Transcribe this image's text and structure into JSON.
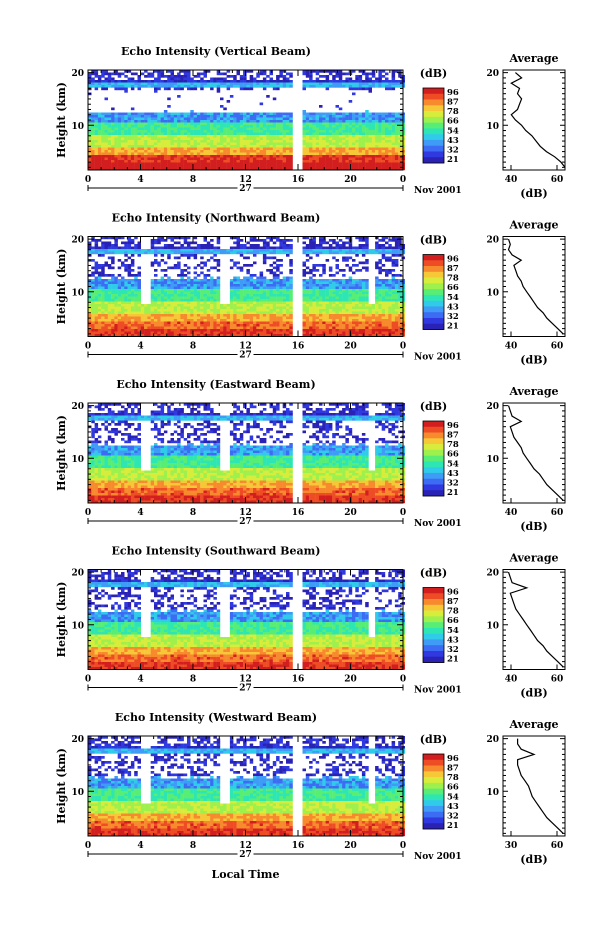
{
  "panels": [
    {
      "title": "Echo Intensity (Vertical Beam)",
      "avg_xticks": [
        "40",
        "60"
      ],
      "avg_xlim": [
        36,
        66
      ],
      "avg_profile": [
        [
          2,
          66
        ],
        [
          3,
          64
        ],
        [
          4,
          61
        ],
        [
          5,
          57
        ],
        [
          6,
          54
        ],
        [
          7,
          52
        ],
        [
          8,
          50
        ],
        [
          9,
          47
        ],
        [
          10,
          45
        ],
        [
          11,
          42
        ],
        [
          12,
          40
        ],
        [
          13,
          43
        ],
        [
          14,
          44
        ],
        [
          15,
          45
        ],
        [
          16,
          43
        ],
        [
          17,
          44
        ],
        [
          18,
          40
        ],
        [
          19,
          45
        ],
        [
          20,
          42
        ]
      ]
    },
    {
      "title": "Echo Intensity (Northward Beam)",
      "avg_xticks": [
        "40",
        "60"
      ],
      "avg_xlim": [
        30,
        64
      ],
      "avg_profile": [
        [
          2,
          63
        ],
        [
          3,
          60
        ],
        [
          4,
          57
        ],
        [
          5,
          54
        ],
        [
          6,
          52
        ],
        [
          7,
          49
        ],
        [
          8,
          47
        ],
        [
          9,
          45
        ],
        [
          10,
          43
        ],
        [
          11,
          41
        ],
        [
          12,
          40
        ],
        [
          13,
          38
        ],
        [
          14,
          37
        ],
        [
          15,
          36
        ],
        [
          16,
          40
        ],
        [
          17,
          35
        ],
        [
          18,
          33
        ],
        [
          19,
          34
        ],
        [
          20,
          33
        ]
      ]
    },
    {
      "title": "Echo Intensity (Eastward Beam)",
      "avg_xticks": [
        "40",
        "60"
      ],
      "avg_xlim": [
        30,
        64
      ],
      "avg_profile": [
        [
          2,
          63
        ],
        [
          3,
          60
        ],
        [
          4,
          57
        ],
        [
          5,
          54
        ],
        [
          6,
          52
        ],
        [
          7,
          50
        ],
        [
          8,
          47
        ],
        [
          9,
          45
        ],
        [
          10,
          43
        ],
        [
          11,
          41
        ],
        [
          12,
          40
        ],
        [
          13,
          38
        ],
        [
          14,
          36
        ],
        [
          15,
          35
        ],
        [
          16,
          34
        ],
        [
          17,
          40
        ],
        [
          18,
          35
        ],
        [
          19,
          34
        ],
        [
          20,
          33
        ]
      ]
    },
    {
      "title": "Echo Intensity (Southward Beam)",
      "avg_xticks": [
        "40",
        "60"
      ],
      "avg_xlim": [
        30,
        64
      ],
      "avg_profile": [
        [
          2,
          63
        ],
        [
          3,
          60
        ],
        [
          4,
          57
        ],
        [
          5,
          54
        ],
        [
          6,
          52
        ],
        [
          7,
          49
        ],
        [
          8,
          47
        ],
        [
          9,
          45
        ],
        [
          10,
          43
        ],
        [
          11,
          41
        ],
        [
          12,
          39
        ],
        [
          13,
          37
        ],
        [
          14,
          36
        ],
        [
          15,
          35
        ],
        [
          16,
          34
        ],
        [
          17,
          43
        ],
        [
          18,
          35
        ],
        [
          19,
          34
        ],
        [
          20,
          33
        ]
      ]
    },
    {
      "title": "Echo Intensity (Westward Beam)",
      "avg_xticks": [
        "30",
        "60"
      ],
      "avg_xlim": [
        30,
        64
      ],
      "avg_profile": [
        [
          2,
          63
        ],
        [
          3,
          60
        ],
        [
          4,
          57
        ],
        [
          5,
          54
        ],
        [
          6,
          52
        ],
        [
          7,
          50
        ],
        [
          8,
          48
        ],
        [
          9,
          46
        ],
        [
          10,
          45
        ],
        [
          11,
          44
        ],
        [
          12,
          42
        ],
        [
          13,
          40
        ],
        [
          14,
          39
        ],
        [
          15,
          38
        ],
        [
          16,
          38
        ],
        [
          17,
          47
        ],
        [
          18,
          40
        ],
        [
          19,
          38
        ],
        [
          20,
          38
        ]
      ]
    }
  ],
  "chart_data": {
    "type": "heatmap",
    "ylabel": "Height (km)",
    "xlabel": "Local Time",
    "xlim": [
      0,
      24
    ],
    "ylim": [
      2,
      20
    ],
    "xticks": [
      "0",
      "4",
      "8",
      "12",
      "16",
      "20",
      "0"
    ],
    "yticks": [
      "10",
      "20"
    ],
    "date_label": "27",
    "date_suffix": "Nov 2001",
    "colorbar_unit": "(dB)",
    "colorbar_labels": [
      "96",
      "87",
      "78",
      "66",
      "54",
      "43",
      "32",
      "21"
    ],
    "avg_title": "Average",
    "avg_xlabel": "(dB)"
  },
  "colors": [
    "#2a22b4",
    "#3038e0",
    "#3d6cf4",
    "#3f9cf6",
    "#2fcbe8",
    "#2ee6b4",
    "#58ee76",
    "#9ef04c",
    "#d8ec3c",
    "#f6c838",
    "#f78a2c",
    "#ee4c24",
    "#d21e1e"
  ]
}
